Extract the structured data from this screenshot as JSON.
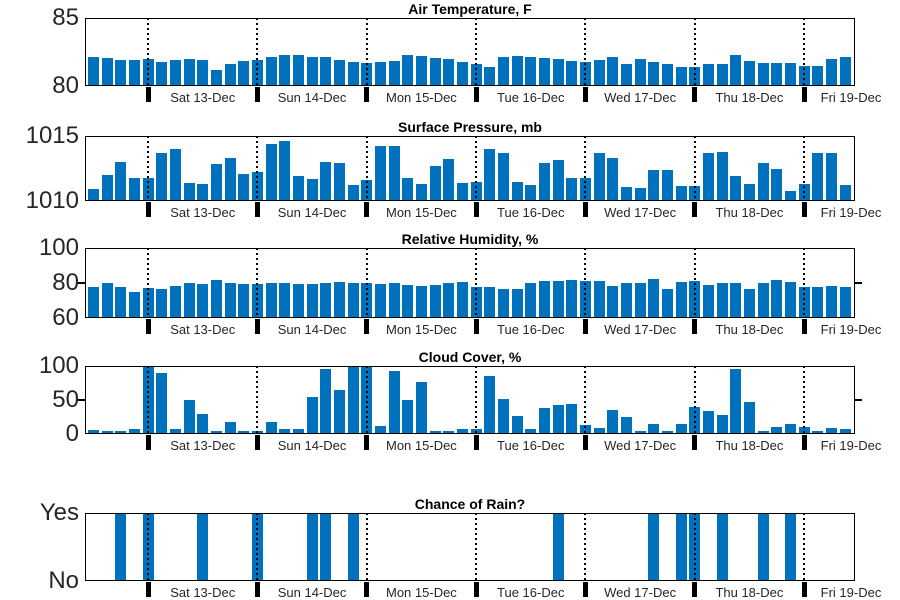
{
  "figure": {
    "background": "#ffffff"
  },
  "colors": {
    "bar": "#0072BD",
    "grid": "#000000",
    "axis": "#000000",
    "tick_label": "#262626",
    "title": "#000000"
  },
  "x_axis": {
    "day_labels": [
      "Sat 13-Dec",
      "Sun 14-Dec",
      "Mon 15-Dec",
      "Tue 16-Dec",
      "Wed 17-Dec",
      "Thu 18-Dec",
      "Fri 19-Dec"
    ],
    "bars_per_day": 8,
    "n_bars": 56,
    "grid": "dotted-vertical-at-midnight"
  },
  "chart_data": [
    {
      "type": "bar",
      "title": "Air Temperature, F",
      "ylim": [
        80,
        85
      ],
      "yticks": [
        {
          "v": 85,
          "label": "85"
        },
        {
          "v": 80,
          "label": "80"
        }
      ],
      "values": [
        82.1,
        82.05,
        81.9,
        81.9,
        82.0,
        81.8,
        81.9,
        82.0,
        81.9,
        81.2,
        81.6,
        81.85,
        81.9,
        82.1,
        82.3,
        82.3,
        82.15,
        82.1,
        81.9,
        81.75,
        81.7,
        81.75,
        81.85,
        82.3,
        82.2,
        82.05,
        81.95,
        81.75,
        81.6,
        81.4,
        82.15,
        82.2,
        82.15,
        82.05,
        81.95,
        81.85,
        81.8,
        81.9,
        82.1,
        81.6,
        82.0,
        81.8,
        81.6,
        81.4,
        81.4,
        81.6,
        81.6,
        82.3,
        81.85,
        81.7,
        81.7,
        81.7,
        81.45,
        81.45,
        82.0,
        82.1
      ]
    },
    {
      "type": "bar",
      "title": "Surface Pressure, mb",
      "ylim": [
        1010,
        1015
      ],
      "yticks": [
        {
          "v": 1015,
          "label": "1015"
        },
        {
          "v": 1010,
          "label": "1010"
        }
      ],
      "values": [
        1010.9,
        1012.0,
        1013.0,
        1011.8,
        1011.75,
        1013.7,
        1014.0,
        1011.4,
        1011.3,
        1012.85,
        1013.3,
        1012.05,
        1012.25,
        1014.4,
        1014.6,
        1011.95,
        1011.7,
        1013.0,
        1012.95,
        1011.2,
        1011.6,
        1014.25,
        1014.25,
        1011.75,
        1011.3,
        1012.7,
        1013.2,
        1011.35,
        1011.45,
        1014.0,
        1013.7,
        1011.5,
        1011.2,
        1012.9,
        1013.15,
        1011.8,
        1011.75,
        1013.7,
        1013.3,
        1011.1,
        1011.0,
        1012.35,
        1012.35,
        1011.15,
        1011.15,
        1013.7,
        1013.8,
        1011.9,
        1011.3,
        1012.9,
        1012.5,
        1010.8,
        1011.3,
        1013.7,
        1013.7,
        1011.25
      ]
    },
    {
      "type": "bar",
      "title": "Relative Humidity, %",
      "ylim": [
        60,
        100
      ],
      "yticks": [
        {
          "v": 100,
          "label": "100"
        },
        {
          "v": 80,
          "label": "80",
          "tick": true
        },
        {
          "v": 60,
          "label": "60"
        }
      ],
      "values": [
        77.5,
        80,
        77.5,
        75,
        77,
        76.5,
        78.5,
        80,
        79.5,
        81.5,
        80,
        79.5,
        79.5,
        80,
        80,
        79.5,
        79.5,
        80,
        80.5,
        80,
        80,
        79.5,
        80,
        79,
        78.5,
        79,
        80,
        80.5,
        78,
        78,
        76.5,
        76.5,
        80,
        81,
        81,
        82,
        81,
        81,
        78.5,
        80,
        80,
        82.5,
        76.5,
        80.5,
        81,
        79,
        80,
        80,
        76.5,
        80,
        81.5,
        80.5,
        77.5,
        78,
        78.5,
        77.5
      ]
    },
    {
      "type": "bar",
      "title": "Cloud Cover, %",
      "ylim": [
        0,
        100
      ],
      "yticks": [
        {
          "v": 100,
          "label": "100"
        },
        {
          "v": 50,
          "label": "50",
          "tick": true
        },
        {
          "v": 0,
          "label": "0"
        }
      ],
      "values": [
        6,
        4,
        5,
        7,
        100,
        90,
        8,
        50,
        30,
        5,
        17,
        5,
        4,
        18,
        7,
        8,
        55,
        95,
        65,
        100,
        100,
        12,
        93,
        50,
        77,
        5,
        5,
        7,
        8,
        85,
        52,
        26,
        8,
        38,
        42,
        44,
        13,
        9,
        36,
        25,
        4,
        15,
        4,
        14,
        40,
        34,
        28,
        95,
        47,
        5,
        11,
        14,
        10,
        5,
        9,
        7
      ]
    },
    {
      "type": "bar",
      "title": "Chance of Rain?",
      "ylim": [
        0,
        1
      ],
      "yticks": [
        {
          "v": 1,
          "label": "Yes"
        },
        {
          "v": 0,
          "label": "No"
        }
      ],
      "values": [
        0,
        0,
        1,
        0,
        1,
        0,
        0,
        0,
        1,
        0,
        0,
        0,
        1,
        0,
        0,
        0,
        1,
        1,
        0,
        1,
        0,
        0,
        0,
        0,
        0,
        0,
        0,
        0,
        0,
        0,
        0,
        0,
        0,
        0,
        1,
        0,
        0,
        0,
        0,
        0,
        0,
        1,
        0,
        1,
        1,
        0,
        1,
        0,
        0,
        1,
        0,
        1,
        0,
        0,
        0,
        0
      ]
    }
  ]
}
